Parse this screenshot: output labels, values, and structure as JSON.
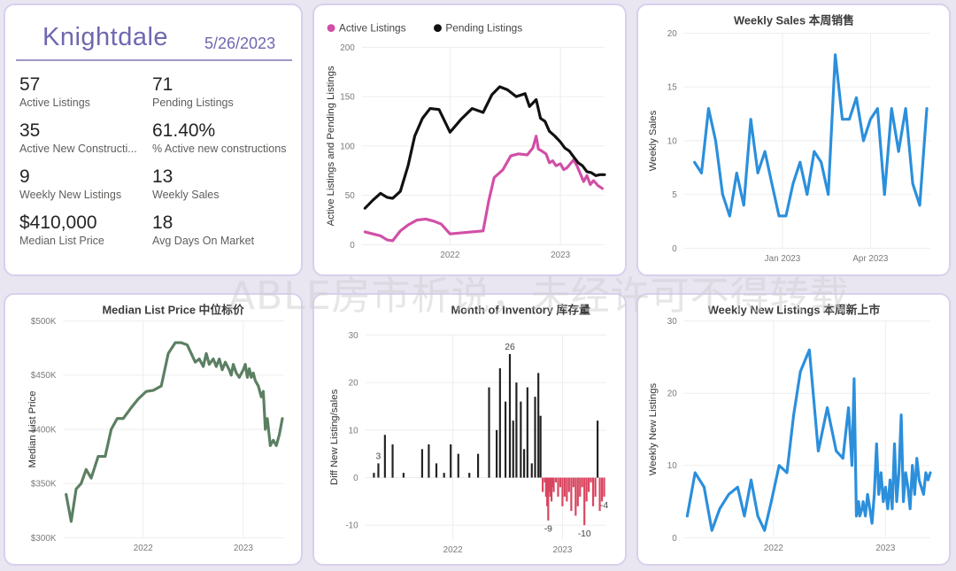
{
  "header": {
    "city": "Knightdale",
    "date": "5/26/2023"
  },
  "kpis": [
    {
      "value": "57",
      "label": "Active Listings"
    },
    {
      "value": "71",
      "label": "Pending Listings"
    },
    {
      "value": "35",
      "label": "Active New Constructi..."
    },
    {
      "value": "61.40%",
      "label": "% Active new constructions"
    },
    {
      "value": "9",
      "label": "Weekly New Listings"
    },
    {
      "value": "13",
      "label": "Weekly Sales"
    },
    {
      "value": "$410,000",
      "label": "Median List Price"
    },
    {
      "value": "18",
      "label": "Avg Days On Market"
    }
  ],
  "watermark": "ABLE房市析说，未经许可不得转载",
  "colors": {
    "active": "#d14fa6",
    "pending": "#111111",
    "blue": "#2b8fdc",
    "green": "#5b7f62",
    "bar_pos": "#222222",
    "bar_neg": "#d9455f",
    "title": "#6e68b0"
  },
  "chart_data": [
    {
      "id": "listings",
      "type": "line",
      "title": "",
      "ylabel": "Active Listings and Pending Listings",
      "ylim": [
        0,
        200
      ],
      "yticks": [
        0,
        50,
        100,
        150,
        200
      ],
      "xlim": [
        2021.2,
        2023.4
      ],
      "xticks": [
        2022,
        2023
      ],
      "legend_position": "top-left",
      "series": [
        {
          "name": "Active Listings",
          "x": [
            2021.23,
            2021.3,
            2021.37,
            2021.43,
            2021.48,
            2021.55,
            2021.62,
            2021.7,
            2021.78,
            2021.85,
            2021.92,
            2022.0,
            2022.1,
            2022.2,
            2022.3,
            2022.35,
            2022.4,
            2022.48,
            2022.55,
            2022.62,
            2022.7,
            2022.75,
            2022.78,
            2022.8,
            2022.83,
            2022.87,
            2022.9,
            2022.93,
            2022.96,
            2023.0,
            2023.03,
            2023.06,
            2023.09,
            2023.12,
            2023.15,
            2023.18,
            2023.21,
            2023.24,
            2023.27,
            2023.3,
            2023.34,
            2023.38
          ],
          "y": [
            13,
            11,
            9,
            5,
            4,
            14,
            20,
            25,
            26,
            24,
            21,
            11,
            12,
            13,
            14,
            44,
            68,
            76,
            90,
            92,
            91,
            98,
            110,
            97,
            95,
            92,
            83,
            85,
            80,
            82,
            76,
            78,
            82,
            86,
            80,
            72,
            64,
            70,
            61,
            65,
            60,
            57
          ]
        },
        {
          "name": "Pending Listings",
          "x": [
            2021.23,
            2021.3,
            2021.37,
            2021.43,
            2021.48,
            2021.55,
            2021.62,
            2021.68,
            2021.75,
            2021.82,
            2021.9,
            2022.0,
            2022.1,
            2022.2,
            2022.3,
            2022.38,
            2022.45,
            2022.52,
            2022.6,
            2022.68,
            2022.72,
            2022.78,
            2022.82,
            2022.86,
            2022.9,
            2022.95,
            2023.0,
            2023.04,
            2023.08,
            2023.12,
            2023.16,
            2023.2,
            2023.24,
            2023.28,
            2023.32,
            2023.36,
            2023.4
          ],
          "y": [
            37,
            45,
            52,
            48,
            47,
            54,
            80,
            110,
            128,
            138,
            137,
            114,
            127,
            138,
            134,
            152,
            160,
            157,
            150,
            153,
            140,
            147,
            128,
            125,
            115,
            110,
            104,
            98,
            95,
            89,
            83,
            80,
            74,
            73,
            70,
            71,
            71
          ]
        }
      ]
    },
    {
      "id": "weekly_sales",
      "type": "line",
      "title": "Weekly Sales 本周销售",
      "ylabel": "Weekly Sales",
      "ylim": [
        0,
        20
      ],
      "yticks": [
        0,
        5,
        10,
        15,
        20
      ],
      "xlim": [
        2022.72,
        2023.42
      ],
      "xticks": [
        2023.0,
        2023.25
      ],
      "xticklabels": [
        "Jan 2023",
        "Apr 2023"
      ],
      "series": [
        {
          "name": "Weekly Sales",
          "x": [
            2022.75,
            2022.77,
            2022.79,
            2022.81,
            2022.83,
            2022.85,
            2022.87,
            2022.89,
            2022.91,
            2022.93,
            2022.95,
            2022.97,
            2022.99,
            2023.01,
            2023.03,
            2023.05,
            2023.07,
            2023.09,
            2023.11,
            2023.13,
            2023.15,
            2023.17,
            2023.19,
            2023.21,
            2023.23,
            2023.25,
            2023.27,
            2023.29,
            2023.31,
            2023.33,
            2023.35,
            2023.37,
            2023.39,
            2023.41
          ],
          "y": [
            8,
            7,
            13,
            10,
            5,
            3,
            7,
            4,
            12,
            7,
            9,
            6,
            3,
            3,
            6,
            8,
            5,
            9,
            8,
            5,
            18,
            12,
            12,
            14,
            10,
            12,
            13,
            5,
            13,
            9,
            13,
            6,
            4,
            13
          ]
        }
      ]
    },
    {
      "id": "median_list_price",
      "type": "line",
      "title": "Median List Price  中位标价",
      "ylabel": "Median List Price",
      "ylim": [
        300000,
        500000
      ],
      "yticks": [
        300000,
        350000,
        400000,
        450000,
        500000
      ],
      "yticklabels": [
        "$300K",
        "$350K",
        "$400K",
        "$450K",
        "$500K"
      ],
      "xlim": [
        2021.2,
        2023.4
      ],
      "xticks": [
        2022,
        2023
      ],
      "series": [
        {
          "name": "Median List Price",
          "x": [
            2021.23,
            2021.28,
            2021.33,
            2021.38,
            2021.43,
            2021.48,
            2021.55,
            2021.62,
            2021.68,
            2021.74,
            2021.8,
            2021.88,
            2021.95,
            2022.03,
            2022.1,
            2022.18,
            2022.25,
            2022.32,
            2022.38,
            2022.44,
            2022.48,
            2022.52,
            2022.56,
            2022.6,
            2022.63,
            2022.66,
            2022.7,
            2022.73,
            2022.76,
            2022.79,
            2022.82,
            2022.86,
            2022.88,
            2022.9,
            2022.93,
            2022.96,
            2023.0,
            2023.02,
            2023.04,
            2023.06,
            2023.08,
            2023.1,
            2023.12,
            2023.15,
            2023.18,
            2023.2,
            2023.22,
            2023.24,
            2023.27,
            2023.3,
            2023.33,
            2023.36,
            2023.39
          ],
          "y": [
            340000,
            315000,
            345000,
            350000,
            363000,
            355000,
            375000,
            375000,
            400000,
            410000,
            410000,
            420000,
            428000,
            435000,
            436000,
            440000,
            470000,
            480000,
            480000,
            478000,
            470000,
            462000,
            465000,
            458000,
            470000,
            460000,
            465000,
            458000,
            465000,
            455000,
            462000,
            455000,
            450000,
            460000,
            452000,
            448000,
            455000,
            460000,
            448000,
            456000,
            448000,
            452000,
            445000,
            440000,
            430000,
            435000,
            400000,
            410000,
            385000,
            390000,
            385000,
            395000,
            410000
          ]
        }
      ]
    },
    {
      "id": "inventory",
      "type": "bar",
      "title": "Month of Inventory 库存量",
      "ylabel": "Diff New Listing/sales",
      "ylim": [
        -13,
        30
      ],
      "yticks": [
        -10,
        0,
        10,
        20,
        30
      ],
      "xlim": [
        2021.2,
        2023.4
      ],
      "xticks": [
        2022,
        2023
      ],
      "x": [
        2021.28,
        2021.32,
        2021.38,
        2021.45,
        2021.55,
        2021.72,
        2021.78,
        2021.85,
        2021.92,
        2021.98,
        2022.05,
        2022.15,
        2022.23,
        2022.33,
        2022.4,
        2022.43,
        2022.48,
        2022.52,
        2022.55,
        2022.58,
        2022.62,
        2022.65,
        2022.68,
        2022.72,
        2022.75,
        2022.78,
        2022.8,
        2022.82,
        2022.84,
        2022.85,
        2022.86,
        2022.87,
        2022.88,
        2022.89,
        2022.9,
        2022.91,
        2022.92,
        2022.94,
        2022.96,
        2022.98,
        2023.0,
        2023.02,
        2023.04,
        2023.06,
        2023.08,
        2023.1,
        2023.12,
        2023.14,
        2023.16,
        2023.18,
        2023.2,
        2023.22,
        2023.24,
        2023.26,
        2023.28,
        2023.3,
        2023.32,
        2023.34,
        2023.36,
        2023.38
      ],
      "values": [
        1,
        3,
        9,
        7,
        1,
        6,
        7,
        3,
        1,
        7,
        5,
        1,
        5,
        19,
        10,
        23,
        16,
        26,
        12,
        20,
        16,
        6,
        19,
        3,
        17,
        22,
        13,
        -3,
        -1,
        -4,
        -6,
        -9,
        -3,
        -4,
        -5,
        -2,
        -3,
        -1,
        -4,
        -2,
        -6,
        -4,
        -5,
        -3,
        -7,
        -2,
        -8,
        -6,
        -4,
        -2,
        -10,
        -5,
        -3,
        -1,
        -6,
        -4,
        12,
        -7,
        -5,
        -4
      ],
      "data_labels": [
        {
          "x": 2021.32,
          "y": 3,
          "text": "3"
        },
        {
          "x": 2022.52,
          "y": 26,
          "text": "26"
        },
        {
          "x": 2022.87,
          "y": -9,
          "text": "-9"
        },
        {
          "x": 2023.2,
          "y": -10,
          "text": "-10"
        },
        {
          "x": 2023.38,
          "y": -4,
          "text": "-4"
        }
      ]
    },
    {
      "id": "weekly_new_listings",
      "type": "line",
      "title": "Weekly New Listings  本周新上市",
      "ylabel": "Weekly New Listings",
      "ylim": [
        0,
        30
      ],
      "yticks": [
        0,
        10,
        20,
        30
      ],
      "xlim": [
        2021.2,
        2023.4
      ],
      "xticks": [
        2022,
        2023
      ],
      "series": [
        {
          "name": "Weekly New Listings",
          "x": [
            2021.23,
            2021.3,
            2021.38,
            2021.45,
            2021.52,
            2021.6,
            2021.68,
            2021.74,
            2021.8,
            2021.86,
            2021.92,
            2021.98,
            2022.05,
            2022.12,
            2022.18,
            2022.24,
            2022.32,
            2022.4,
            2022.48,
            2022.56,
            2022.62,
            2022.67,
            2022.7,
            2022.72,
            2022.74,
            2022.76,
            2022.77,
            2022.79,
            2022.8,
            2022.82,
            2022.84,
            2022.86,
            2022.88,
            2022.9,
            2022.92,
            2022.94,
            2022.96,
            2022.98,
            2023.0,
            2023.02,
            2023.04,
            2023.06,
            2023.08,
            2023.1,
            2023.12,
            2023.14,
            2023.16,
            2023.18,
            2023.2,
            2023.22,
            2023.24,
            2023.26,
            2023.28,
            2023.3,
            2023.32,
            2023.34,
            2023.36,
            2023.38,
            2023.4
          ],
          "y": [
            3,
            9,
            7,
            1,
            4,
            6,
            7,
            3,
            8,
            3,
            1,
            5,
            10,
            9,
            17,
            23,
            26,
            12,
            18,
            12,
            11,
            18,
            10,
            22,
            3,
            5,
            3,
            4,
            5,
            3,
            6,
            4,
            2,
            6,
            13,
            6,
            9,
            5,
            7,
            4,
            8,
            4,
            13,
            5,
            9,
            17,
            5,
            9,
            7,
            4,
            10,
            6,
            11,
            8,
            7,
            6,
            9,
            8,
            9
          ]
        }
      ]
    }
  ]
}
